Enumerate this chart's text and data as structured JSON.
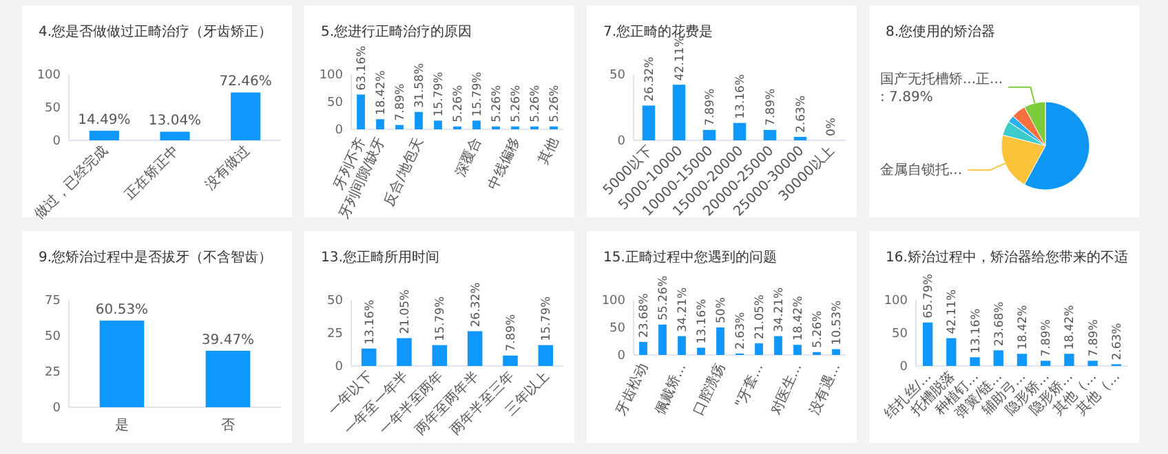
{
  "chart_data": [
    {
      "type": "bar",
      "title": "4.您是否做做过正畸治疗（牙齿矫正）",
      "categories": [
        "做过，已经完成",
        "正在矫正中",
        "没有做过"
      ],
      "values": [
        14.49,
        13.04,
        72.46
      ],
      "value_labels": [
        "14.49%",
        "13.04%",
        "72.46%"
      ],
      "color": "#0f97fb",
      "ylim": [
        0,
        100
      ],
      "yticks": [
        0,
        50,
        100
      ]
    },
    {
      "type": "bar",
      "title": "5.您进行正畸治疗的原因",
      "categories": [
        "牙列不齐",
        "牙列间隙/缺牙",
        null,
        "反合/地包天",
        null,
        null,
        "深覆合",
        null,
        "中线偏移",
        null,
        "其他"
      ],
      "values": [
        63.16,
        18.42,
        7.89,
        31.58,
        15.79,
        5.26,
        15.79,
        5.26,
        5.26,
        5.26,
        5.26
      ],
      "value_labels": [
        "63.16%",
        "18.42%",
        "7.89%",
        "31.58%",
        "15.79%",
        "5.26%",
        "15.79%",
        "5.26%",
        "5.26%",
        "5.26%",
        "5.26%"
      ],
      "color": "#0f97fb",
      "ylim": [
        0,
        100
      ],
      "yticks": [
        0,
        50,
        100
      ]
    },
    {
      "type": "bar",
      "title": "7.您正畸的花费是",
      "categories": [
        "5000以下",
        "5000-10000",
        "10000-15000",
        "15000-20000",
        "20000-25000",
        "25000-30000",
        "30000以上"
      ],
      "values": [
        26.32,
        42.11,
        7.89,
        13.16,
        7.89,
        2.63,
        0
      ],
      "value_labels": [
        "26.32%",
        "42.11%",
        "7.89%",
        "13.16%",
        "7.89%",
        "2.63%",
        "0%"
      ],
      "color": "#0f97fb",
      "ylim": [
        0,
        50
      ],
      "yticks": [
        0,
        50
      ]
    },
    {
      "type": "pie",
      "title": "8.您使用的矫治器",
      "categories": [
        null,
        "金属自锁托...",
        null,
        null,
        null,
        "国产无托槽矫...正..."
      ],
      "values": [
        57.89,
        21.05,
        5.26,
        2.63,
        5.26,
        7.89
      ],
      "value_labels": [
        null,
        null,
        null,
        null,
        null,
        ": 7.89%"
      ],
      "colors": [
        "#0e96f5",
        "#fcc23a",
        "#3ccbcb",
        "#2ab1f0",
        "#fb6e3e",
        "#7ccc3c"
      ]
    },
    {
      "type": "bar",
      "title": "9.您矫治过程中是否拔牙（不含智齿）",
      "categories": [
        "是",
        "否"
      ],
      "values": [
        60.53,
        39.47
      ],
      "value_labels": [
        "60.53%",
        "39.47%"
      ],
      "color": "#0f97fb",
      "ylim": [
        0,
        75
      ],
      "yticks": [
        0,
        25,
        50,
        75
      ]
    },
    {
      "type": "bar",
      "title": "13.您正畸所用时间",
      "categories": [
        "一年以下",
        "一年至一年半",
        "一年半至两年",
        "两年至两年半",
        "两年半至三年",
        "三年以上"
      ],
      "values": [
        13.16,
        21.05,
        15.79,
        26.32,
        7.89,
        15.79
      ],
      "value_labels": [
        "13.16%",
        "21.05%",
        "15.79%",
        "26.32%",
        "7.89%",
        "15.79%"
      ],
      "color": "#0f97fb",
      "ylim": [
        0,
        50
      ],
      "yticks": [
        0,
        25,
        50
      ]
    },
    {
      "type": "bar",
      "title": "15.正畸过程中您遇到的问题",
      "categories": [
        "牙齿松动",
        null,
        "佩戴矫...",
        null,
        "口腔溃疡",
        null,
        "\"牙套...",
        null,
        "对医生...",
        null,
        "没有遇..."
      ],
      "values": [
        23.68,
        55.26,
        34.21,
        13.16,
        50,
        2.63,
        21.05,
        34.21,
        18.42,
        5.26,
        10.53
      ],
      "value_labels": [
        "23.68%",
        "55.26%",
        "34.21%",
        "13.16%",
        "50%",
        "2.63%",
        "21.05%",
        "34.21%",
        "18.42%",
        "5.26%",
        "10.53%"
      ],
      "color": "#0f97fb",
      "ylim": [
        0,
        100
      ],
      "yticks": [
        0,
        50,
        100
      ]
    },
    {
      "type": "bar",
      "title": "16.矫治过程中，矫治器给您带来的不适",
      "categories": [
        "结扎丝/...",
        "托槽脱落",
        "种植钉...",
        "弹簧/链...",
        "辅助弓...",
        "隐形矫...",
        "隐形矫...",
        "其他（...",
        "其他（..."
      ],
      "values": [
        65.79,
        42.11,
        13.16,
        23.68,
        18.42,
        7.89,
        18.42,
        7.89,
        2.63
      ],
      "value_labels": [
        "65.79%",
        "42.11%",
        "13.16%",
        "23.68%",
        "18.42%",
        "7.89%",
        "18.42%",
        "7.89%",
        "2.63%"
      ],
      "color": "#0f97fb",
      "ylim": [
        0,
        100
      ],
      "yticks": [
        0,
        50,
        100
      ]
    }
  ]
}
